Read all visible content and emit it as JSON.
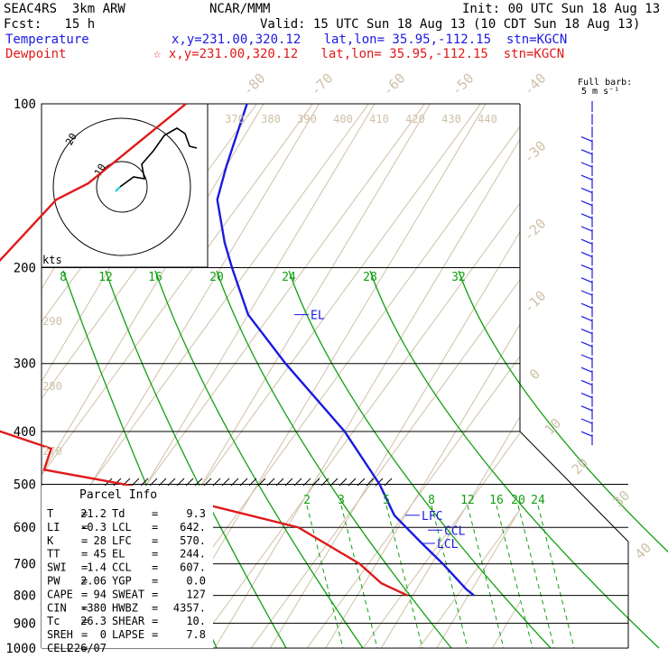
{
  "header": {
    "line1_left": "SEAC4RS  3km ARW",
    "line1_center": "NCAR/MMM",
    "line1_right": "Init: 00 UTC Sun 18 Aug 13",
    "line2_left": "Fcst:   15 h",
    "line2_right": "Valid: 15 UTC Sun 18 Aug 13 (10 CDT Sun 18 Aug 13)",
    "temp_label": "Temperature",
    "temp_info": "x,y=231.00,320.12   lat,lon= 35.95,-112.15  stn=KGCN",
    "dew_label": "Dewpoint",
    "dew_info": "☆ x,y=231.00,320.12   lat,lon= 35.95,-112.15  stn=KGCN"
  },
  "barb_title_1": "Full barb:",
  "barb_title_2": "5 m s⁻¹",
  "hodograph": {
    "units": "kts",
    "ring_label_inner": "10",
    "ring_label_outer": "20"
  },
  "parcel": {
    "title": "Parcel Info",
    "rows": [
      {
        "l": "T",
        "lv": "21.2",
        "r": "Td",
        "rv": "9.3"
      },
      {
        "l": "LI",
        "lv": "-0.3",
        "r": "LCL",
        "rv": "642."
      },
      {
        "l": "K",
        "lv": "28",
        "r": "LFC",
        "rv": "570."
      },
      {
        "l": "TT",
        "lv": "45",
        "r": "EL",
        "rv": "244."
      },
      {
        "l": "SWI",
        "lv": "1.4",
        "r": "CCL",
        "rv": "607."
      },
      {
        "l": "PW",
        "lv": "2.06",
        "r": "YGP",
        "rv": "0.0"
      },
      {
        "l": "CAPE",
        "lv": "94",
        "r": "SWEAT",
        "rv": "127"
      },
      {
        "l": "CIN",
        "lv": "-380",
        "r": "HWBZ",
        "rv": "4357."
      },
      {
        "l": "Tc",
        "lv": "26.3",
        "r": "SHEAR",
        "rv": "10."
      },
      {
        "l": "SREH",
        "lv": "0",
        "r": "LAPSE",
        "rv": "7.8"
      },
      {
        "l": "CELL",
        "lv": "226/07",
        "r": "",
        "rv": ""
      }
    ]
  },
  "colors": {
    "temperature": "#1a1ae0",
    "dewpoint": "#e01a1a",
    "isotherm": "#cfc0a8",
    "theta_label": "#cfc0a8",
    "mixing_ratio": "#12a012",
    "grid": "#000000"
  },
  "chart_data": {
    "type": "line",
    "title": "",
    "ylabel": "",
    "xlabel": "",
    "y_scale": "log-pressure",
    "pressure_ticks": [
      100,
      200,
      300,
      400,
      500,
      600,
      700,
      800,
      900,
      1000
    ],
    "isotherm_labels": [
      "-80",
      "-70",
      "-60",
      "-50",
      "-40",
      "-30",
      "-20",
      "-10",
      "0",
      "10",
      "20",
      "30",
      "40"
    ],
    "theta_labels_top": [
      "370",
      "380",
      "390",
      "400",
      "410",
      "420",
      "430",
      "440"
    ],
    "theta_labels_left": [
      "290",
      "280",
      "270"
    ],
    "mixing_ratio_labels_upper": [
      "8",
      "12",
      "16",
      "20",
      "24",
      "28",
      "32"
    ],
    "mixing_ratio_labels_lower": [
      "2",
      "3",
      "5",
      "8",
      "12",
      "16",
      "20",
      "24"
    ],
    "series": [
      {
        "name": "Temperature",
        "pressure": [
          100,
          130,
          150,
          180,
          200,
          244,
          300,
          400,
          500,
          570,
          642,
          700,
          780,
          800
        ],
        "temperature": [
          -73,
          -70,
          -68,
          -62,
          -58,
          -50,
          -38,
          -20,
          -8,
          -2,
          6,
          12,
          19,
          21
        ]
      },
      {
        "name": "Dewpoint",
        "pressure": [
          100,
          140,
          150,
          200,
          270,
          300,
          340,
          400,
          430,
          470,
          500,
          600,
          700,
          760,
          800
        ],
        "dewpoint": [
          -84,
          -93,
          -97,
          -101,
          -109,
          -98,
          -101,
          -82,
          -71,
          -70,
          -54,
          -18,
          -3,
          3,
          9
        ]
      }
    ],
    "levels": [
      {
        "label": "EL",
        "pressure": 244
      },
      {
        "label": "LFC",
        "pressure": 570
      },
      {
        "label": "CCL",
        "pressure": 607
      },
      {
        "label": "LCL",
        "pressure": 642
      }
    ]
  }
}
